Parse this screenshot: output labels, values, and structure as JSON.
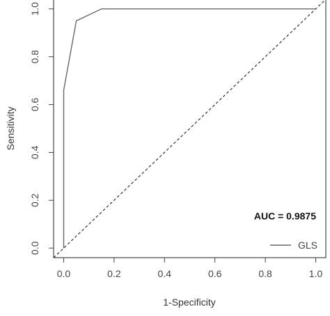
{
  "chart_data": {
    "type": "line",
    "title": "",
    "xlabel": "1-Specificity",
    "ylabel": "Sensitivity",
    "xlim": [
      -0.04,
      1.04
    ],
    "ylim": [
      -0.04,
      1.04
    ],
    "x_ticks": [
      "0.0",
      "0.2",
      "0.4",
      "0.6",
      "0.8",
      "1.0"
    ],
    "y_ticks": [
      "0.0",
      "0.2",
      "0.4",
      "0.6",
      "0.8",
      "1.0"
    ],
    "series": [
      {
        "name": "GLS",
        "color": "#666666",
        "points": [
          [
            0.0,
            0.0
          ],
          [
            0.0,
            0.66
          ],
          [
            0.05,
            0.95
          ],
          [
            0.15,
            1.0
          ],
          [
            1.0,
            1.0
          ]
        ]
      }
    ],
    "reference_line": {
      "style": "dashed",
      "color": "#333333",
      "points": [
        [
          -0.04,
          -0.04
        ],
        [
          1.04,
          1.04
        ]
      ]
    },
    "annotation": "AUC = 0.9875",
    "legend": {
      "placement": "bottom-right",
      "entries": [
        "GLS"
      ]
    },
    "grid": false
  }
}
